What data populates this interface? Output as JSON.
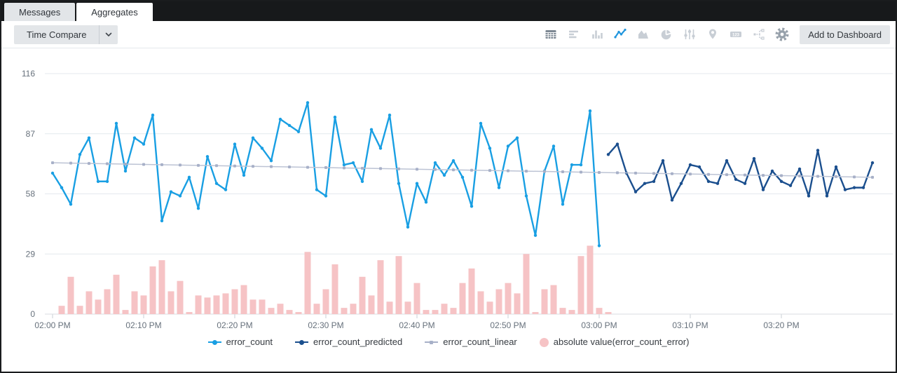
{
  "tabs": [
    {
      "label": "Messages",
      "active": false
    },
    {
      "label": "Aggregates",
      "active": true
    }
  ],
  "toolbar": {
    "time_compare_label": "Time Compare",
    "add_to_dashboard_label": "Add to Dashboard",
    "chart_type_icons": [
      "table-icon",
      "bar-chart-icon",
      "column-chart-icon",
      "line-chart-icon",
      "area-chart-icon",
      "pie-chart-icon",
      "sliders-icon",
      "map-pin-icon",
      "single-value-icon",
      "flow-icon"
    ],
    "active_chart_type": "line",
    "settings_icon": "gear-icon"
  },
  "chart_data": {
    "type": "line",
    "title": "",
    "x_axis": {
      "tick_labels": [
        "02:00 PM",
        "02:10 PM",
        "02:20 PM",
        "02:30 PM",
        "02:40 PM",
        "02:50 PM",
        "03:00 PM",
        "03:10 PM",
        "03:20 PM"
      ],
      "tick_offsets_min": [
        0,
        10,
        20,
        30,
        40,
        50,
        60,
        70,
        80
      ],
      "start_label": "02:00 PM"
    },
    "y_axis": {
      "ticks": [
        0,
        29,
        58,
        87,
        116
      ],
      "range": [
        0,
        116
      ],
      "grid": true
    },
    "legend_position": "bottom",
    "series": [
      {
        "name": "error_count",
        "type": "line",
        "color": "#199fe3",
        "start_offset_min": 0,
        "interval_min": 1,
        "values": [
          68,
          61,
          53,
          77,
          85,
          64,
          64,
          92,
          69,
          85,
          82,
          96,
          45,
          59,
          57,
          66,
          51,
          76,
          63,
          60,
          82,
          67,
          85,
          80,
          74,
          94,
          91,
          88,
          102,
          60,
          57,
          95,
          72,
          73,
          64,
          89,
          80,
          96,
          63,
          42,
          63,
          54,
          73,
          67,
          74,
          66,
          52,
          92,
          80,
          61,
          81,
          85,
          57,
          38,
          69,
          81,
          53,
          72,
          72,
          98,
          33
        ]
      },
      {
        "name": "error_count_predicted",
        "type": "line",
        "color": "#1b4f8e",
        "start_offset_min": 61,
        "interval_min": 1,
        "values": [
          77,
          82,
          68,
          59,
          63,
          64,
          74,
          55,
          63,
          72,
          71,
          64,
          63,
          74,
          65,
          63,
          75,
          60,
          69,
          64,
          62,
          70,
          57,
          79,
          57,
          71,
          60,
          61,
          61,
          73
        ]
      },
      {
        "name": "error_count_linear",
        "type": "trend-line",
        "color": "#a7b0c8",
        "start_offset_min": 0,
        "end_offset_min": 90,
        "values": [
          73,
          66
        ]
      },
      {
        "name": "absolute value(error_count_error)",
        "type": "bar",
        "color": "#f6c3c5",
        "start_offset_min": 1,
        "interval_min": 1,
        "values": [
          4,
          18,
          4,
          11,
          7,
          12,
          19,
          2,
          11,
          9,
          23,
          26,
          11,
          16,
          1,
          9,
          8,
          9,
          10,
          12,
          14,
          7,
          7,
          3,
          5,
          2,
          1,
          30,
          5,
          12,
          24,
          3,
          5,
          18,
          9,
          26,
          6,
          28,
          6,
          15,
          2,
          2,
          5,
          3,
          15,
          22,
          11,
          6,
          12,
          15,
          10,
          29,
          1,
          12,
          14,
          3,
          2,
          28,
          33,
          3,
          1
        ]
      }
    ]
  }
}
